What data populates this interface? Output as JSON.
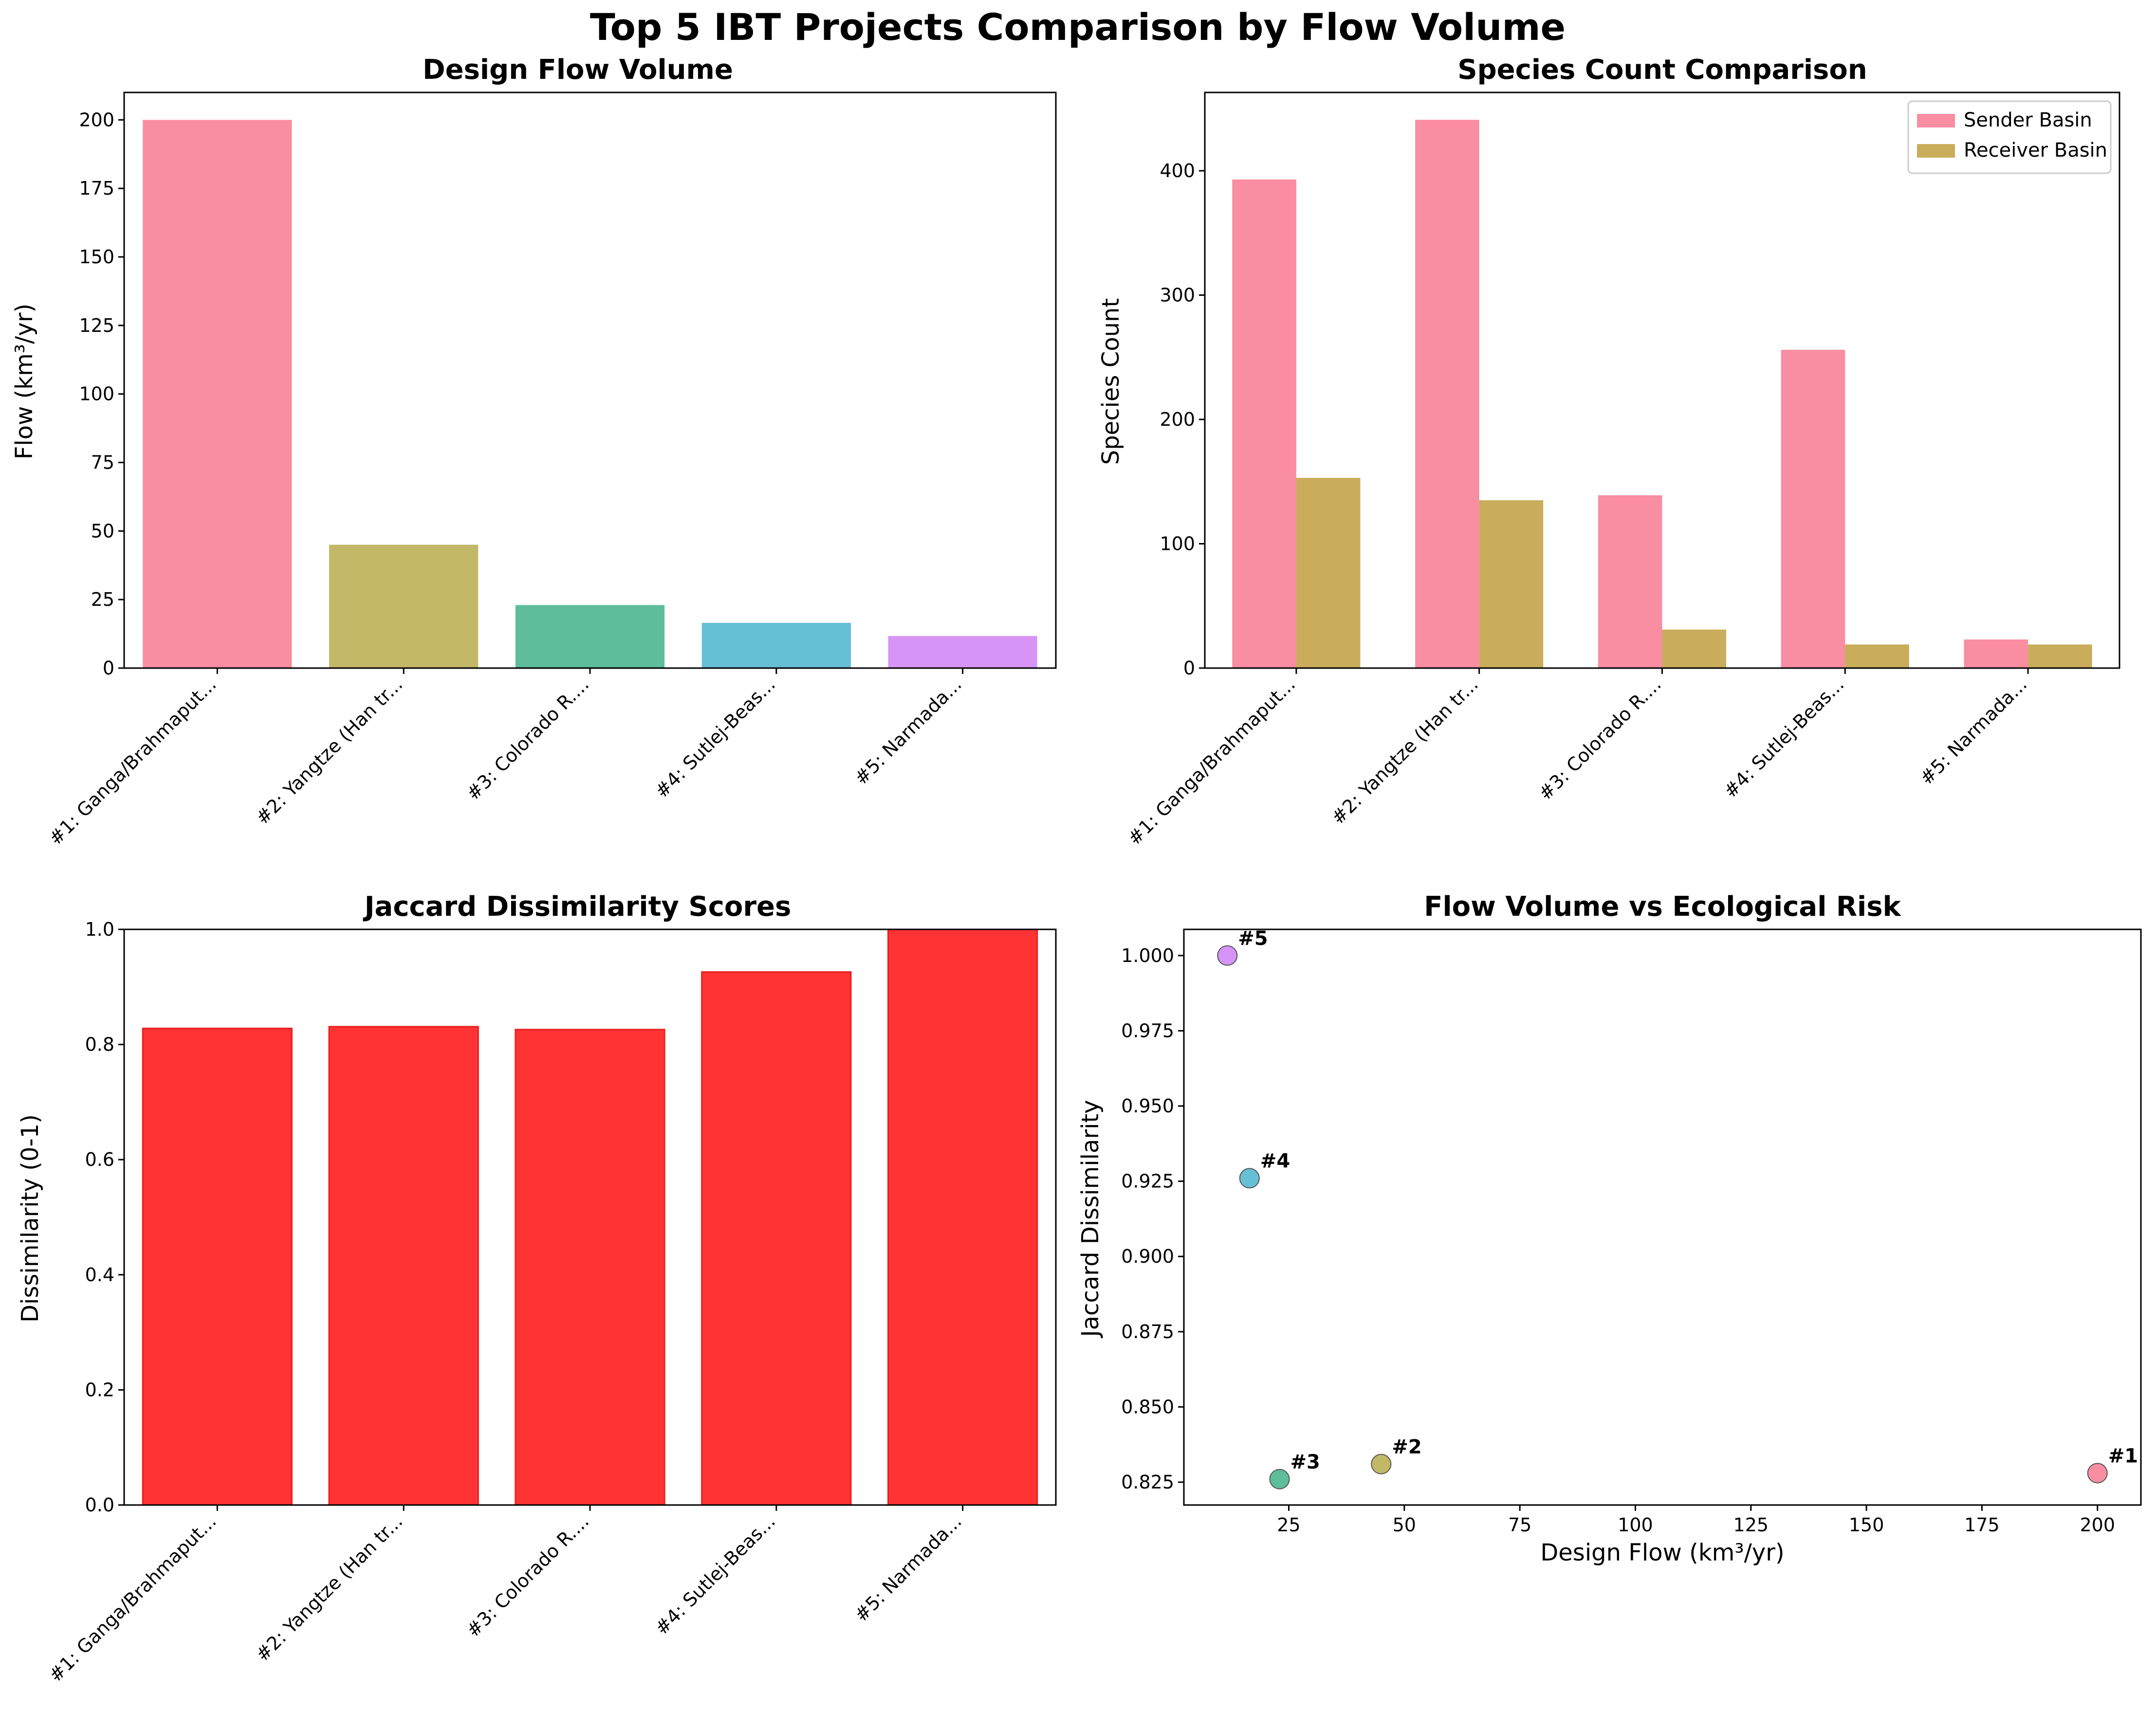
{
  "figure": {
    "title": "Top 5 IBT Projects Comparison by Flow Volume"
  },
  "projects": [
    "#1: Ganga/Brahmaput...",
    "#2: Yangtze (Han tr...",
    "#3: Colorado R....",
    "#4: Sutlej-Beas...",
    "#5: Narmada..."
  ],
  "colors": {
    "project_palette": [
      "#f77189",
      "#bb9832",
      "#50b131",
      "#3ba3ec",
      "#cc7af4"
    ],
    "project_palette_actual": [
      "#f77189",
      "#b4a642",
      "#36ad82",
      "#3fafcb",
      "#cc7af4"
    ],
    "sender": "#f77189",
    "receiver": "#bb9832",
    "jaccard_bar": "#ff0000"
  },
  "chart_data": [
    {
      "type": "bar",
      "title": "Design Flow Volume",
      "xlabel": "",
      "ylabel": "Flow (km³/yr)",
      "categories": [
        "#1: Ganga/Brahmaput...",
        "#2: Yangtze (Han tr...",
        "#3: Colorado R....",
        "#4: Sutlej-Beas...",
        "#5: Narmada..."
      ],
      "values": [
        200,
        45,
        23,
        16.5,
        11.7
      ],
      "ylim": [
        0,
        210
      ],
      "yticks": [
        0,
        25,
        50,
        75,
        100,
        125,
        150,
        175,
        200
      ],
      "grid": false
    },
    {
      "type": "bar",
      "title": "Species Count Comparison",
      "xlabel": "",
      "ylabel": "Species Count",
      "categories": [
        "#1: Ganga/Brahmaput...",
        "#2: Yangtze (Han tr...",
        "#3: Colorado R....",
        "#4: Sutlej-Beas...",
        "#5: Narmada..."
      ],
      "series": [
        {
          "name": "Sender Basin",
          "values": [
            393,
            441,
            139,
            256,
            23
          ]
        },
        {
          "name": "Receiver Basin",
          "values": [
            153,
            135,
            31,
            19,
            19
          ]
        }
      ],
      "ylim": [
        0,
        463
      ],
      "yticks": [
        0,
        100,
        200,
        300,
        400
      ],
      "legend": "top-right",
      "grid": false
    },
    {
      "type": "bar",
      "title": "Jaccard Dissimilarity Scores",
      "xlabel": "",
      "ylabel": "Dissimilarity (0-1)",
      "categories": [
        "#1: Ganga/Brahmaput...",
        "#2: Yangtze (Han tr...",
        "#3: Colorado R....",
        "#4: Sutlej-Beas...",
        "#5: Narmada..."
      ],
      "values": [
        0.828,
        0.831,
        0.826,
        0.926,
        1.0
      ],
      "ylim": [
        0,
        1
      ],
      "yticks": [
        0.0,
        0.2,
        0.4,
        0.6,
        0.8,
        1.0
      ],
      "grid": false
    },
    {
      "type": "scatter",
      "title": "Flow Volume vs Ecological Risk",
      "xlabel": "Design Flow (km³/yr)",
      "ylabel": "Jaccard Dissimilarity",
      "points": [
        {
          "label": "#1",
          "x": 200,
          "y": 0.828
        },
        {
          "label": "#2",
          "x": 45,
          "y": 0.831
        },
        {
          "label": "#3",
          "x": 23,
          "y": 0.826
        },
        {
          "label": "#4",
          "x": 16.5,
          "y": 0.926
        },
        {
          "label": "#5",
          "x": 11.7,
          "y": 1.0
        }
      ],
      "xlim": [
        2.3,
        209.4
      ],
      "ylim": [
        0.8174,
        1.0087
      ],
      "xticks": [
        25,
        50,
        75,
        100,
        125,
        150,
        175,
        200
      ],
      "yticks": [
        0.825,
        0.85,
        0.875,
        0.9,
        0.925,
        0.95,
        0.975,
        1.0
      ],
      "ytick_labels": [
        "0.825",
        "0.850",
        "0.875",
        "0.900",
        "0.925",
        "0.950",
        "0.975",
        "1.000"
      ],
      "grid": false
    }
  ]
}
